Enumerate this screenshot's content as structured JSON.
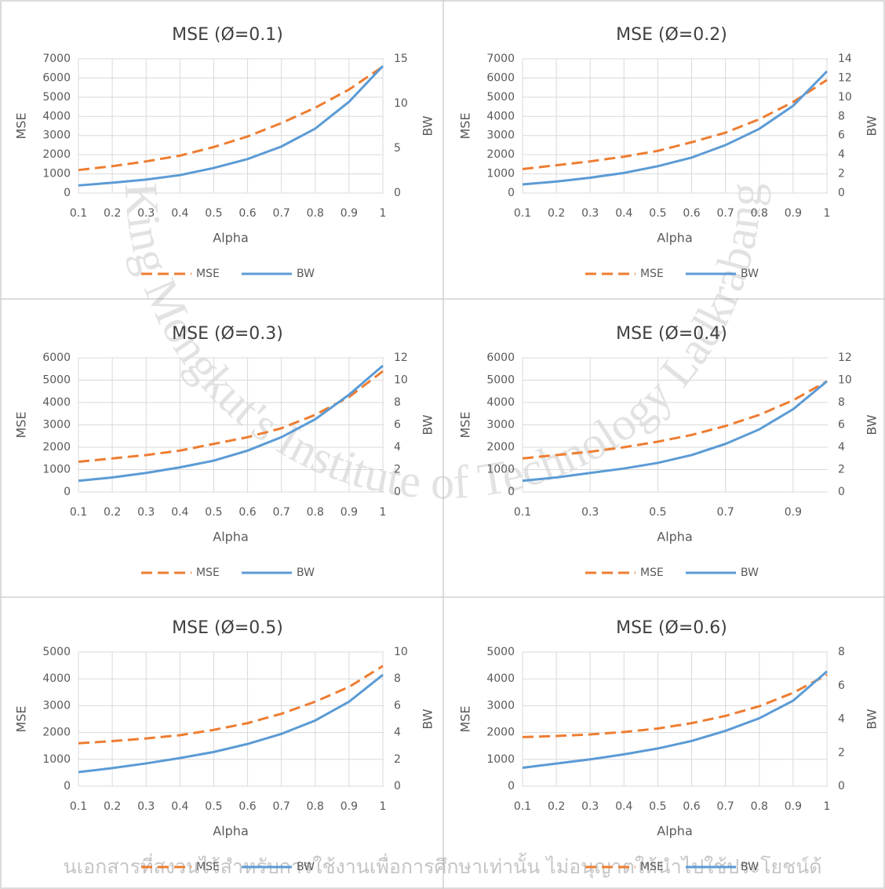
{
  "watermark": {
    "arc_text": "King Mongkut's Institute of Technology Ladkrabang",
    "footer_text": "นเอกสารที่สงวนไว้สำหรับการใช้งานเพื่อการศึกษาเท่านั้น ไม่อนุญาตให้นำไปใช้ประโยชน์ด้"
  },
  "chart_data": [
    {
      "type": "line",
      "title": "MSE (Ø=0.1)",
      "xlabel": "Alpha",
      "ylabel": "MSE",
      "y2label": "BW",
      "grid": true,
      "legend": "bottom",
      "x": [
        0.1,
        0.2,
        0.3,
        0.4,
        0.5,
        0.6,
        0.7,
        0.8,
        0.9,
        1
      ],
      "xlim": [
        0.1,
        1
      ],
      "xticks": [
        0.1,
        0.2,
        0.3,
        0.4,
        0.5,
        0.6,
        0.7,
        0.8,
        0.9,
        1
      ],
      "ylim": [
        0,
        7000
      ],
      "yticks": [
        0,
        1000,
        2000,
        3000,
        4000,
        5000,
        6000,
        7000
      ],
      "y2lim": [
        0,
        15
      ],
      "y2ticks": [
        0,
        5,
        10,
        15
      ],
      "series": [
        {
          "name": "MSE",
          "color": "#ed7d31",
          "dashed": true,
          "values": [
            1200,
            1400,
            1650,
            1950,
            2400,
            2950,
            3650,
            4450,
            5400,
            6600
          ]
        },
        {
          "name": "BW",
          "color": "#5b9bd5",
          "dashed": false,
          "axis": "y2",
          "values": [
            0.85,
            1.15,
            1.5,
            2.0,
            2.8,
            3.8,
            5.2,
            7.2,
            10.2,
            14.2
          ]
        }
      ]
    },
    {
      "type": "line",
      "title": "MSE (Ø=0.2)",
      "xlabel": "Alpha",
      "ylabel": "MSE",
      "y2label": "BW",
      "grid": true,
      "legend": "bottom",
      "x": [
        0.1,
        0.2,
        0.3,
        0.4,
        0.5,
        0.6,
        0.7,
        0.8,
        0.9,
        1
      ],
      "xlim": [
        0.1,
        1
      ],
      "xticks": [
        0.1,
        0.2,
        0.3,
        0.4,
        0.5,
        0.6,
        0.7,
        0.8,
        0.9,
        1
      ],
      "ylim": [
        0,
        7000
      ],
      "yticks": [
        0,
        1000,
        2000,
        3000,
        4000,
        5000,
        6000,
        7000
      ],
      "y2lim": [
        0,
        14
      ],
      "y2ticks": [
        0,
        2,
        4,
        6,
        8,
        10,
        12,
        14
      ],
      "series": [
        {
          "name": "MSE",
          "color": "#ed7d31",
          "dashed": true,
          "values": [
            1250,
            1450,
            1650,
            1900,
            2200,
            2650,
            3150,
            3850,
            4750,
            5900
          ]
        },
        {
          "name": "BW",
          "color": "#5b9bd5",
          "dashed": false,
          "axis": "y2",
          "values": [
            0.9,
            1.2,
            1.6,
            2.1,
            2.8,
            3.7,
            5.0,
            6.7,
            9.1,
            12.7
          ]
        }
      ]
    },
    {
      "type": "line",
      "title": "MSE (Ø=0.3)",
      "xlabel": "Alpha",
      "ylabel": "MSE",
      "y2label": "BW",
      "grid": true,
      "legend": "bottom",
      "x": [
        0.1,
        0.2,
        0.3,
        0.4,
        0.5,
        0.6,
        0.7,
        0.8,
        0.9,
        1
      ],
      "xlim": [
        0.1,
        1
      ],
      "xticks": [
        0.1,
        0.2,
        0.3,
        0.4,
        0.5,
        0.6,
        0.7,
        0.8,
        0.9,
        1
      ],
      "ylim": [
        0,
        6000
      ],
      "yticks": [
        0,
        1000,
        2000,
        3000,
        4000,
        5000,
        6000
      ],
      "y2lim": [
        0,
        12
      ],
      "y2ticks": [
        0,
        2,
        4,
        6,
        8,
        10,
        12
      ],
      "series": [
        {
          "name": "MSE",
          "color": "#ed7d31",
          "dashed": true,
          "values": [
            1350,
            1500,
            1650,
            1850,
            2150,
            2450,
            2850,
            3450,
            4250,
            5400
          ]
        },
        {
          "name": "BW",
          "color": "#5b9bd5",
          "dashed": false,
          "axis": "y2",
          "values": [
            1.0,
            1.3,
            1.7,
            2.2,
            2.8,
            3.7,
            4.9,
            6.5,
            8.7,
            11.3
          ]
        }
      ]
    },
    {
      "type": "line",
      "title": "MSE (Ø=0.4)",
      "xlabel": "Alpha",
      "ylabel": "MSE",
      "y2label": "BW",
      "grid": true,
      "legend": "bottom",
      "x": [
        0.1,
        0.2,
        0.3,
        0.4,
        0.5,
        0.6,
        0.7,
        0.8,
        0.9,
        1
      ],
      "xlim": [
        0.1,
        1
      ],
      "xticks": [
        0.1,
        0.3,
        0.5,
        0.7,
        0.9
      ],
      "ylim": [
        0,
        6000
      ],
      "yticks": [
        0,
        1000,
        2000,
        3000,
        4000,
        5000,
        6000
      ],
      "y2lim": [
        0,
        12
      ],
      "y2ticks": [
        0,
        2,
        4,
        6,
        8,
        10,
        12
      ],
      "series": [
        {
          "name": "MSE",
          "color": "#ed7d31",
          "dashed": true,
          "values": [
            1500,
            1650,
            1800,
            2000,
            2250,
            2550,
            2950,
            3450,
            4100,
            4950
          ]
        },
        {
          "name": "BW",
          "color": "#5b9bd5",
          "dashed": false,
          "axis": "y2",
          "values": [
            1.0,
            1.3,
            1.7,
            2.1,
            2.6,
            3.3,
            4.3,
            5.6,
            7.4,
            9.9
          ]
        }
      ]
    },
    {
      "type": "line",
      "title": "MSE (Ø=0.5)",
      "xlabel": "Alpha",
      "ylabel": "MSE",
      "y2label": "BW",
      "grid": true,
      "legend": "bottom",
      "x": [
        0.1,
        0.2,
        0.3,
        0.4,
        0.5,
        0.6,
        0.7,
        0.8,
        0.9,
        1
      ],
      "xlim": [
        0.1,
        1
      ],
      "xticks": [
        0.1,
        0.2,
        0.3,
        0.4,
        0.5,
        0.6,
        0.7,
        0.8,
        0.9,
        1
      ],
      "ylim": [
        0,
        5000
      ],
      "yticks": [
        0,
        1000,
        2000,
        3000,
        4000,
        5000
      ],
      "y2lim": [
        0,
        10
      ],
      "y2ticks": [
        0,
        2,
        4,
        6,
        8,
        10
      ],
      "series": [
        {
          "name": "MSE",
          "color": "#ed7d31",
          "dashed": true,
          "values": [
            1600,
            1680,
            1780,
            1900,
            2100,
            2350,
            2700,
            3150,
            3700,
            4480
          ]
        },
        {
          "name": "BW",
          "color": "#5b9bd5",
          "dashed": false,
          "axis": "y2",
          "values": [
            1.05,
            1.35,
            1.7,
            2.1,
            2.55,
            3.15,
            3.9,
            4.9,
            6.3,
            8.3
          ]
        }
      ]
    },
    {
      "type": "line",
      "title": "MSE (Ø=0.6)",
      "xlabel": "Alpha",
      "ylabel": "MSE",
      "y2label": "BW",
      "grid": true,
      "legend": "bottom",
      "x": [
        0.1,
        0.2,
        0.3,
        0.4,
        0.5,
        0.6,
        0.7,
        0.8,
        0.9,
        1
      ],
      "xlim": [
        0.1,
        1
      ],
      "xticks": [
        0.1,
        0.2,
        0.3,
        0.4,
        0.5,
        0.6,
        0.7,
        0.8,
        0.9,
        1
      ],
      "ylim": [
        0,
        5000
      ],
      "yticks": [
        0,
        1000,
        2000,
        3000,
        4000,
        5000
      ],
      "y2lim": [
        0,
        8
      ],
      "y2ticks": [
        0,
        2,
        4,
        6,
        8
      ],
      "series": [
        {
          "name": "MSE",
          "color": "#ed7d31",
          "dashed": true,
          "values": [
            1830,
            1870,
            1930,
            2020,
            2150,
            2350,
            2620,
            2980,
            3480,
            4150
          ]
        },
        {
          "name": "BW",
          "color": "#5b9bd5",
          "dashed": false,
          "axis": "y2",
          "values": [
            1.1,
            1.35,
            1.6,
            1.9,
            2.25,
            2.7,
            3.3,
            4.05,
            5.1,
            6.85
          ]
        }
      ]
    }
  ]
}
